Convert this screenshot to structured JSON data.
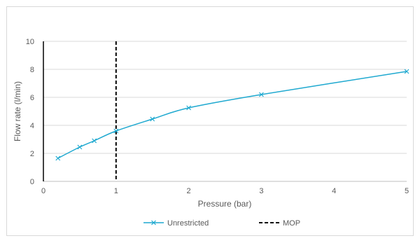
{
  "chart_data": {
    "type": "line",
    "title": "",
    "xlabel": "Pressure (bar)",
    "ylabel": "Flow rate (l/min)",
    "xlim": [
      0,
      5
    ],
    "ylim": [
      0,
      10
    ],
    "x_ticks": [
      0,
      1,
      2,
      3,
      4,
      5
    ],
    "y_ticks": [
      0,
      2,
      4,
      6,
      8,
      10
    ],
    "grid": "horizontal",
    "legend_position": "bottom",
    "series": [
      {
        "name": "Unrestricted",
        "color": "#1fa9d0",
        "marker": "x",
        "x": [
          0.2,
          0.5,
          0.7,
          1.0,
          1.5,
          2.0,
          3.0,
          5.0
        ],
        "y": [
          1.65,
          2.45,
          2.9,
          3.6,
          4.45,
          5.25,
          6.2,
          7.85
        ]
      }
    ],
    "reference_lines": [
      {
        "name": "MOP",
        "orientation": "vertical",
        "x": 1,
        "style": "dashed",
        "color": "#000000"
      }
    ]
  }
}
